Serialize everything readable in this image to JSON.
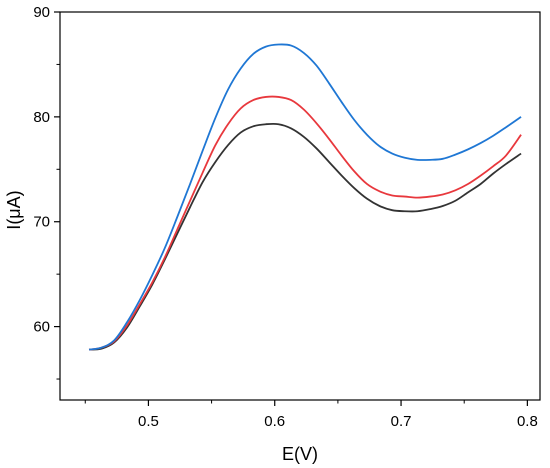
{
  "chart_data": {
    "type": "line",
    "xlabel": "E(V)",
    "ylabel": "I(μA)",
    "xlim": [
      0.43,
      0.81
    ],
    "ylim": [
      53,
      90
    ],
    "x_ticks": [
      0.5,
      0.6,
      0.7,
      0.8
    ],
    "x_tick_labels": [
      "0.5",
      "0.6",
      "0.7",
      "0.8"
    ],
    "y_ticks": [
      60,
      70,
      80,
      90
    ],
    "y_tick_labels": [
      "60",
      "70",
      "80",
      "90"
    ],
    "grid": false,
    "legend": false,
    "series": [
      {
        "color": "#1f77d4",
        "x": [
          0.453,
          0.463,
          0.473,
          0.483,
          0.493,
          0.503,
          0.513,
          0.523,
          0.533,
          0.543,
          0.553,
          0.563,
          0.573,
          0.583,
          0.593,
          0.603,
          0.613,
          0.623,
          0.633,
          0.643,
          0.653,
          0.663,
          0.673,
          0.683,
          0.693,
          0.703,
          0.713,
          0.723,
          0.733,
          0.743,
          0.753,
          0.763,
          0.773,
          0.783,
          0.795
        ],
        "y": [
          57.8,
          58.0,
          58.7,
          60.4,
          62.5,
          64.9,
          67.5,
          70.5,
          73.6,
          76.8,
          79.9,
          82.6,
          84.6,
          86.0,
          86.7,
          86.9,
          86.8,
          86.1,
          84.9,
          83.2,
          81.4,
          79.7,
          78.3,
          77.2,
          76.5,
          76.1,
          75.9,
          75.9,
          76.0,
          76.4,
          76.9,
          77.5,
          78.2,
          79.0,
          80.0
        ]
      },
      {
        "color": "#e8383d",
        "x": [
          0.453,
          0.463,
          0.473,
          0.483,
          0.493,
          0.503,
          0.513,
          0.523,
          0.533,
          0.543,
          0.553,
          0.563,
          0.573,
          0.583,
          0.593,
          0.603,
          0.613,
          0.623,
          0.633,
          0.643,
          0.653,
          0.663,
          0.673,
          0.683,
          0.693,
          0.703,
          0.713,
          0.723,
          0.733,
          0.743,
          0.753,
          0.763,
          0.773,
          0.783,
          0.795
        ],
        "y": [
          57.8,
          58.0,
          58.6,
          60.1,
          62.1,
          64.2,
          66.6,
          69.3,
          72.0,
          74.7,
          77.3,
          79.3,
          80.8,
          81.6,
          81.9,
          81.9,
          81.6,
          80.7,
          79.4,
          77.9,
          76.3,
          74.8,
          73.6,
          72.9,
          72.5,
          72.4,
          72.3,
          72.4,
          72.6,
          73.0,
          73.6,
          74.4,
          75.3,
          76.3,
          78.3
        ]
      },
      {
        "color": "#333333",
        "x": [
          0.453,
          0.463,
          0.473,
          0.483,
          0.493,
          0.503,
          0.513,
          0.523,
          0.533,
          0.543,
          0.553,
          0.563,
          0.573,
          0.583,
          0.593,
          0.603,
          0.613,
          0.623,
          0.633,
          0.643,
          0.653,
          0.663,
          0.673,
          0.683,
          0.693,
          0.703,
          0.713,
          0.723,
          0.733,
          0.743,
          0.753,
          0.763,
          0.773,
          0.783,
          0.795
        ],
        "y": [
          57.8,
          57.9,
          58.5,
          59.9,
          61.9,
          64.0,
          66.4,
          68.9,
          71.4,
          73.8,
          75.7,
          77.3,
          78.5,
          79.1,
          79.3,
          79.3,
          78.9,
          78.1,
          77.0,
          75.7,
          74.4,
          73.2,
          72.2,
          71.5,
          71.1,
          71.0,
          71.0,
          71.2,
          71.5,
          72.0,
          72.8,
          73.6,
          74.6,
          75.5,
          76.5
        ]
      }
    ]
  }
}
